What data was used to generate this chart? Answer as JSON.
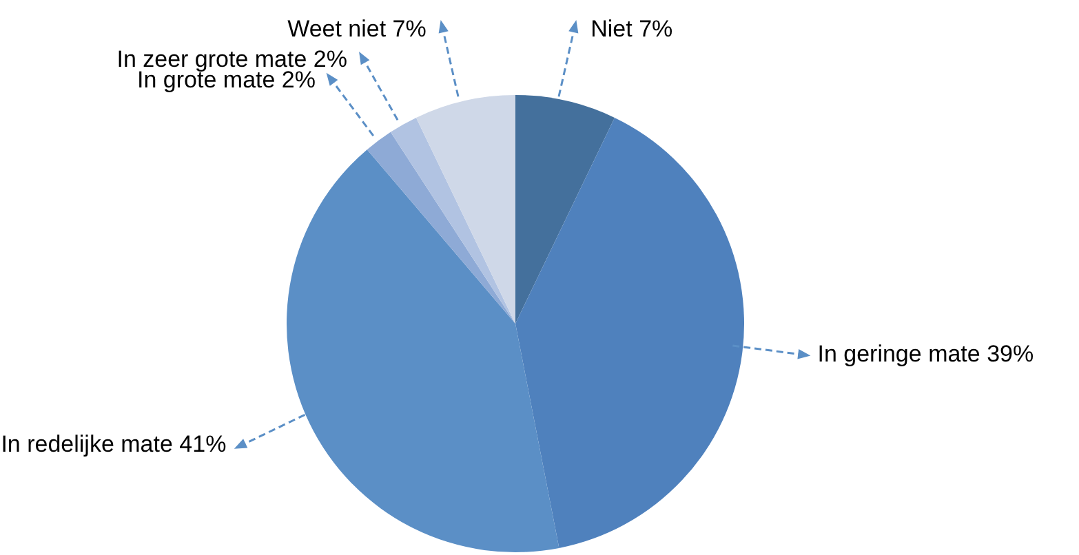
{
  "chart_data": {
    "type": "pie",
    "categories": [
      "Niet",
      "In geringe mate",
      "In redelijke mate",
      "In grote mate",
      "In zeer grote mate",
      "Weet niet"
    ],
    "values": [
      7,
      39,
      41,
      2,
      2,
      7
    ],
    "value_labels": [
      "7%",
      "39%",
      "41%",
      "2%",
      "2%",
      "7%"
    ],
    "colors": [
      "#44709c",
      "#4f81bd",
      "#5b8fc6",
      "#8eaad6",
      "#b1c3e2",
      "#cfd8e8"
    ]
  }
}
